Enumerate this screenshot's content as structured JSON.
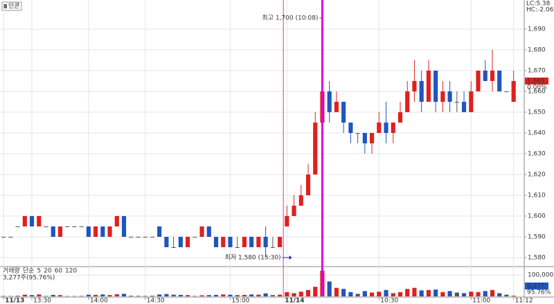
{
  "chart_data": {
    "type": "candlestick",
    "stock_name": "인콘",
    "candles": [
      [
        1590,
        1590,
        1590,
        1590
      ],
      [
        1590,
        1590,
        1590,
        1590
      ],
      [
        1595,
        1595,
        1595,
        1595
      ],
      [
        1595,
        1600,
        1595,
        1600
      ],
      [
        1600,
        1600,
        1595,
        1595
      ],
      [
        1595,
        1600,
        1595,
        1600
      ],
      [
        1595,
        1595,
        1595,
        1595
      ],
      [
        1595,
        1595,
        1590,
        1590
      ],
      [
        1590,
        1595,
        1590,
        1595
      ],
      [
        1595,
        1595,
        1595,
        1595
      ],
      [
        1595,
        1595,
        1595,
        1595
      ],
      [
        1595,
        1595,
        1595,
        1595
      ],
      [
        1595,
        1595,
        1590,
        1590
      ],
      [
        1590,
        1595,
        1590,
        1595
      ],
      [
        1595,
        1595,
        1590,
        1590
      ],
      [
        1590,
        1595,
        1590,
        1595
      ],
      [
        1595,
        1600,
        1595,
        1600
      ],
      [
        1600,
        1600,
        1590,
        1590
      ],
      [
        1590,
        1590,
        1590,
        1590
      ],
      [
        1590,
        1590,
        1590,
        1590
      ],
      [
        1590,
        1590,
        1590,
        1590
      ],
      [
        1590,
        1590,
        1590,
        1590
      ],
      [
        1595,
        1595,
        1590,
        1590
      ],
      [
        1590,
        1590,
        1585,
        1585
      ],
      [
        1585,
        1590,
        1585,
        1585
      ],
      [
        1590,
        1590,
        1585,
        1585
      ],
      [
        1585,
        1590,
        1585,
        1590
      ],
      [
        1590,
        1590,
        1590,
        1590
      ],
      [
        1590,
        1595,
        1590,
        1595
      ],
      [
        1595,
        1595,
        1590,
        1590
      ],
      [
        1590,
        1590,
        1585,
        1585
      ],
      [
        1585,
        1590,
        1585,
        1590
      ],
      [
        1590,
        1590,
        1585,
        1585
      ],
      [
        1585,
        1590,
        1585,
        1585
      ],
      [
        1585,
        1590,
        1585,
        1590
      ],
      [
        1590,
        1590,
        1585,
        1585
      ],
      [
        1585,
        1590,
        1585,
        1590
      ],
      [
        1590,
        1595,
        1580,
        1585
      ],
      [
        1585,
        1590,
        1585,
        1585
      ],
      [
        1585,
        1590,
        1585,
        1590
      ],
      [
        1595,
        1605,
        1595,
        1600
      ],
      [
        1600,
        1610,
        1600,
        1605
      ],
      [
        1605,
        1615,
        1605,
        1610
      ],
      [
        1610,
        1625,
        1610,
        1620
      ],
      [
        1620,
        1650,
        1620,
        1645
      ],
      [
        1645,
        1700,
        1640,
        1660
      ],
      [
        1660,
        1665,
        1645,
        1650
      ],
      [
        1650,
        1660,
        1650,
        1655
      ],
      [
        1655,
        1655,
        1640,
        1645
      ],
      [
        1645,
        1645,
        1635,
        1640
      ],
      [
        1640,
        1640,
        1635,
        1640
      ],
      [
        1640,
        1640,
        1630,
        1635
      ],
      [
        1635,
        1640,
        1630,
        1640
      ],
      [
        1640,
        1650,
        1640,
        1645
      ],
      [
        1645,
        1655,
        1635,
        1640
      ],
      [
        1640,
        1645,
        1635,
        1645
      ],
      [
        1645,
        1655,
        1645,
        1650
      ],
      [
        1650,
        1665,
        1650,
        1660
      ],
      [
        1660,
        1675,
        1655,
        1665
      ],
      [
        1665,
        1670,
        1650,
        1655
      ],
      [
        1655,
        1675,
        1655,
        1670
      ],
      [
        1670,
        1670,
        1650,
        1655
      ],
      [
        1655,
        1665,
        1650,
        1660
      ],
      [
        1660,
        1665,
        1650,
        1655
      ],
      [
        1655,
        1660,
        1650,
        1655
      ],
      [
        1655,
        1660,
        1650,
        1650
      ],
      [
        1650,
        1665,
        1650,
        1660
      ],
      [
        1660,
        1670,
        1660,
        1670
      ],
      [
        1670,
        1675,
        1665,
        1665
      ],
      [
        1665,
        1680,
        1660,
        1670
      ],
      [
        1670,
        1670,
        1660,
        1660
      ],
      [
        1660,
        1660,
        1660,
        1660
      ],
      [
        1655,
        1670,
        1655,
        1665
      ]
    ],
    "volume": [
      2000,
      1500,
      3000,
      8000,
      6000,
      9000,
      2000,
      7000,
      6000,
      1500,
      1500,
      2000,
      8000,
      7000,
      9000,
      6000,
      10000,
      12000,
      3000,
      2500,
      2000,
      3000,
      9000,
      11000,
      8000,
      7000,
      6000,
      2000,
      5000,
      6000,
      7000,
      9000,
      8000,
      6000,
      7000,
      9000,
      8000,
      14000,
      6000,
      8000,
      20000,
      15000,
      22000,
      30000,
      45000,
      120000,
      70000,
      40000,
      35000,
      20000,
      12000,
      25000,
      18000,
      22000,
      30000,
      15000,
      20000,
      35000,
      40000,
      28000,
      30000,
      32000,
      20000,
      25000,
      18000,
      15000,
      22000,
      20000,
      25000,
      30000,
      15000,
      8000,
      3277
    ],
    "categories": [
      "11/13",
      null,
      null,
      null,
      "13:30",
      null,
      null,
      null,
      null,
      null,
      null,
      null,
      "14:00",
      null,
      null,
      null,
      null,
      null,
      null,
      null,
      "14:30",
      null,
      null,
      null,
      null,
      null,
      null,
      null,
      null,
      null,
      null,
      null,
      "15:00",
      null,
      null,
      null,
      null,
      null,
      null,
      null,
      "11/14",
      null,
      null,
      null,
      null,
      null,
      null,
      null,
      null,
      null,
      null,
      null,
      null,
      "10:30",
      null,
      null,
      null,
      null,
      null,
      null,
      null,
      null,
      null,
      null,
      null,
      null,
      "11:00",
      null,
      null,
      null,
      null,
      null,
      "11:12"
    ],
    "ylim": [
      1576,
      1704
    ],
    "yticks": [
      {
        "value": 1580,
        "label": "1,580"
      },
      {
        "value": 1590,
        "label": "1,590"
      },
      {
        "value": 1600,
        "label": "1,600"
      },
      {
        "value": 1610,
        "label": "1,610"
      },
      {
        "value": 1620,
        "label": "1,620"
      },
      {
        "value": 1630,
        "label": "1,630"
      },
      {
        "value": 1640,
        "label": "1,640"
      },
      {
        "value": 1650,
        "label": "1,650"
      },
      {
        "value": 1660,
        "label": "1,660"
      },
      {
        "value": 1670,
        "label": "1,670"
      },
      {
        "value": 1680,
        "label": "1,680"
      },
      {
        "value": 1690,
        "label": "1,690"
      }
    ],
    "volume_ylim": [
      0,
      130000
    ],
    "volume_yticks": [
      {
        "value": 100000,
        "label": "100,000"
      }
    ],
    "up_color": "#e0201f",
    "down_color": "#1f55c0",
    "grid": true,
    "high_annotation": "최고 1,700 (10:08)",
    "low_annotation": "최저 1,580 (15:30)",
    "lc": "LC:5.38",
    "hc": "HC:-2.06",
    "last_price": {
      "value": 1665,
      "label": "1,665"
    },
    "change": "0.00%",
    "volume_legend": [
      "거래량",
      "단순",
      "5",
      "20",
      "60",
      "120"
    ],
    "volume_info": "3,277주(95.76%)",
    "last_volume": {
      "value": 3277,
      "label": "3,277"
    },
    "volume_ratio": "95.76%"
  }
}
